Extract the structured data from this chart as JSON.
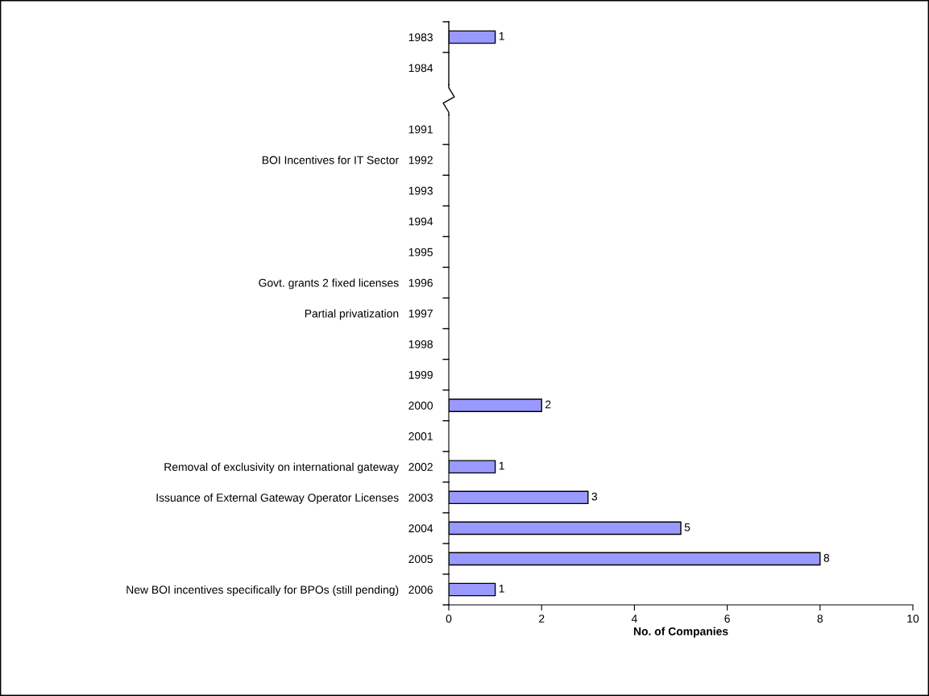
{
  "chart_data": {
    "type": "bar",
    "orientation": "horizontal",
    "xlabel": "No. of Companies",
    "categories": [
      "1983",
      "1984",
      null,
      "1991",
      "BOI Incentives for IT Sector   1992",
      "1993",
      "1994",
      "1995",
      "Govt. grants 2 fixed licenses   1996",
      "Partial privatization   1997",
      "1998",
      "1999",
      "2000",
      "2001",
      "Removal of exclusivity on international gateway   2002",
      "Issuance of External Gateway Operator Licenses   2003",
      "2004",
      "2005",
      "New BOI incentives specifically for BPOs (still pending)   2006"
    ],
    "values": [
      1,
      null,
      null,
      null,
      null,
      null,
      null,
      null,
      null,
      null,
      null,
      null,
      2,
      null,
      1,
      3,
      5,
      8,
      1
    ],
    "color": "#9999ff",
    "xlim": [
      0,
      10
    ],
    "xticks": [
      0,
      2,
      4,
      6,
      8,
      10
    ],
    "grid": false,
    "data_labels": true
  }
}
